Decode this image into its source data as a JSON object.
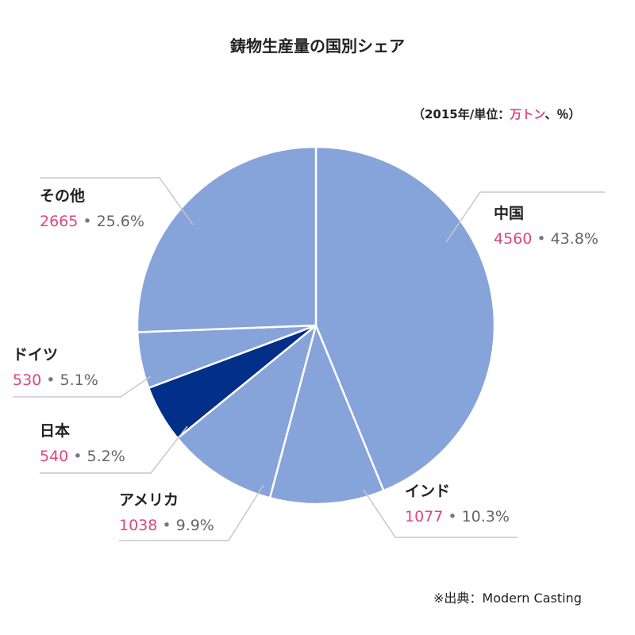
{
  "header": {
    "title": "鋳物生産量の国別シェア",
    "unit_prefix": "（2015年/単位：",
    "unit_highlight": "万トン",
    "unit_suffix": "、％）"
  },
  "footer": {
    "source": "※出典：Modern Casting"
  },
  "chart_data": {
    "type": "pie",
    "title": "鋳物生産量の国別シェア",
    "unit": "万トン、％",
    "year": "2015",
    "start_angle_deg": 0,
    "direction": "clockwise",
    "slices": [
      {
        "name": "中国",
        "value": 4560,
        "percent": "43.8%",
        "color": "#86a3da"
      },
      {
        "name": "インド",
        "value": 1077,
        "percent": "10.3%",
        "color": "#86a3da"
      },
      {
        "name": "アメリカ",
        "value": 1038,
        "percent": "9.9%",
        "color": "#86a3da"
      },
      {
        "name": "日本",
        "value": 540,
        "percent": "5.2%",
        "color": "#022f88"
      },
      {
        "name": "ドイツ",
        "value": 530,
        "percent": "5.1%",
        "color": "#86a3da"
      },
      {
        "name": "その他",
        "value": 2665,
        "percent": "25.6%",
        "color": "#86a3da"
      }
    ],
    "colors": {
      "slice": "#86a3da",
      "highlight": "#022f88",
      "amount": "#e0457f",
      "leader": "#c8c8c8"
    }
  }
}
